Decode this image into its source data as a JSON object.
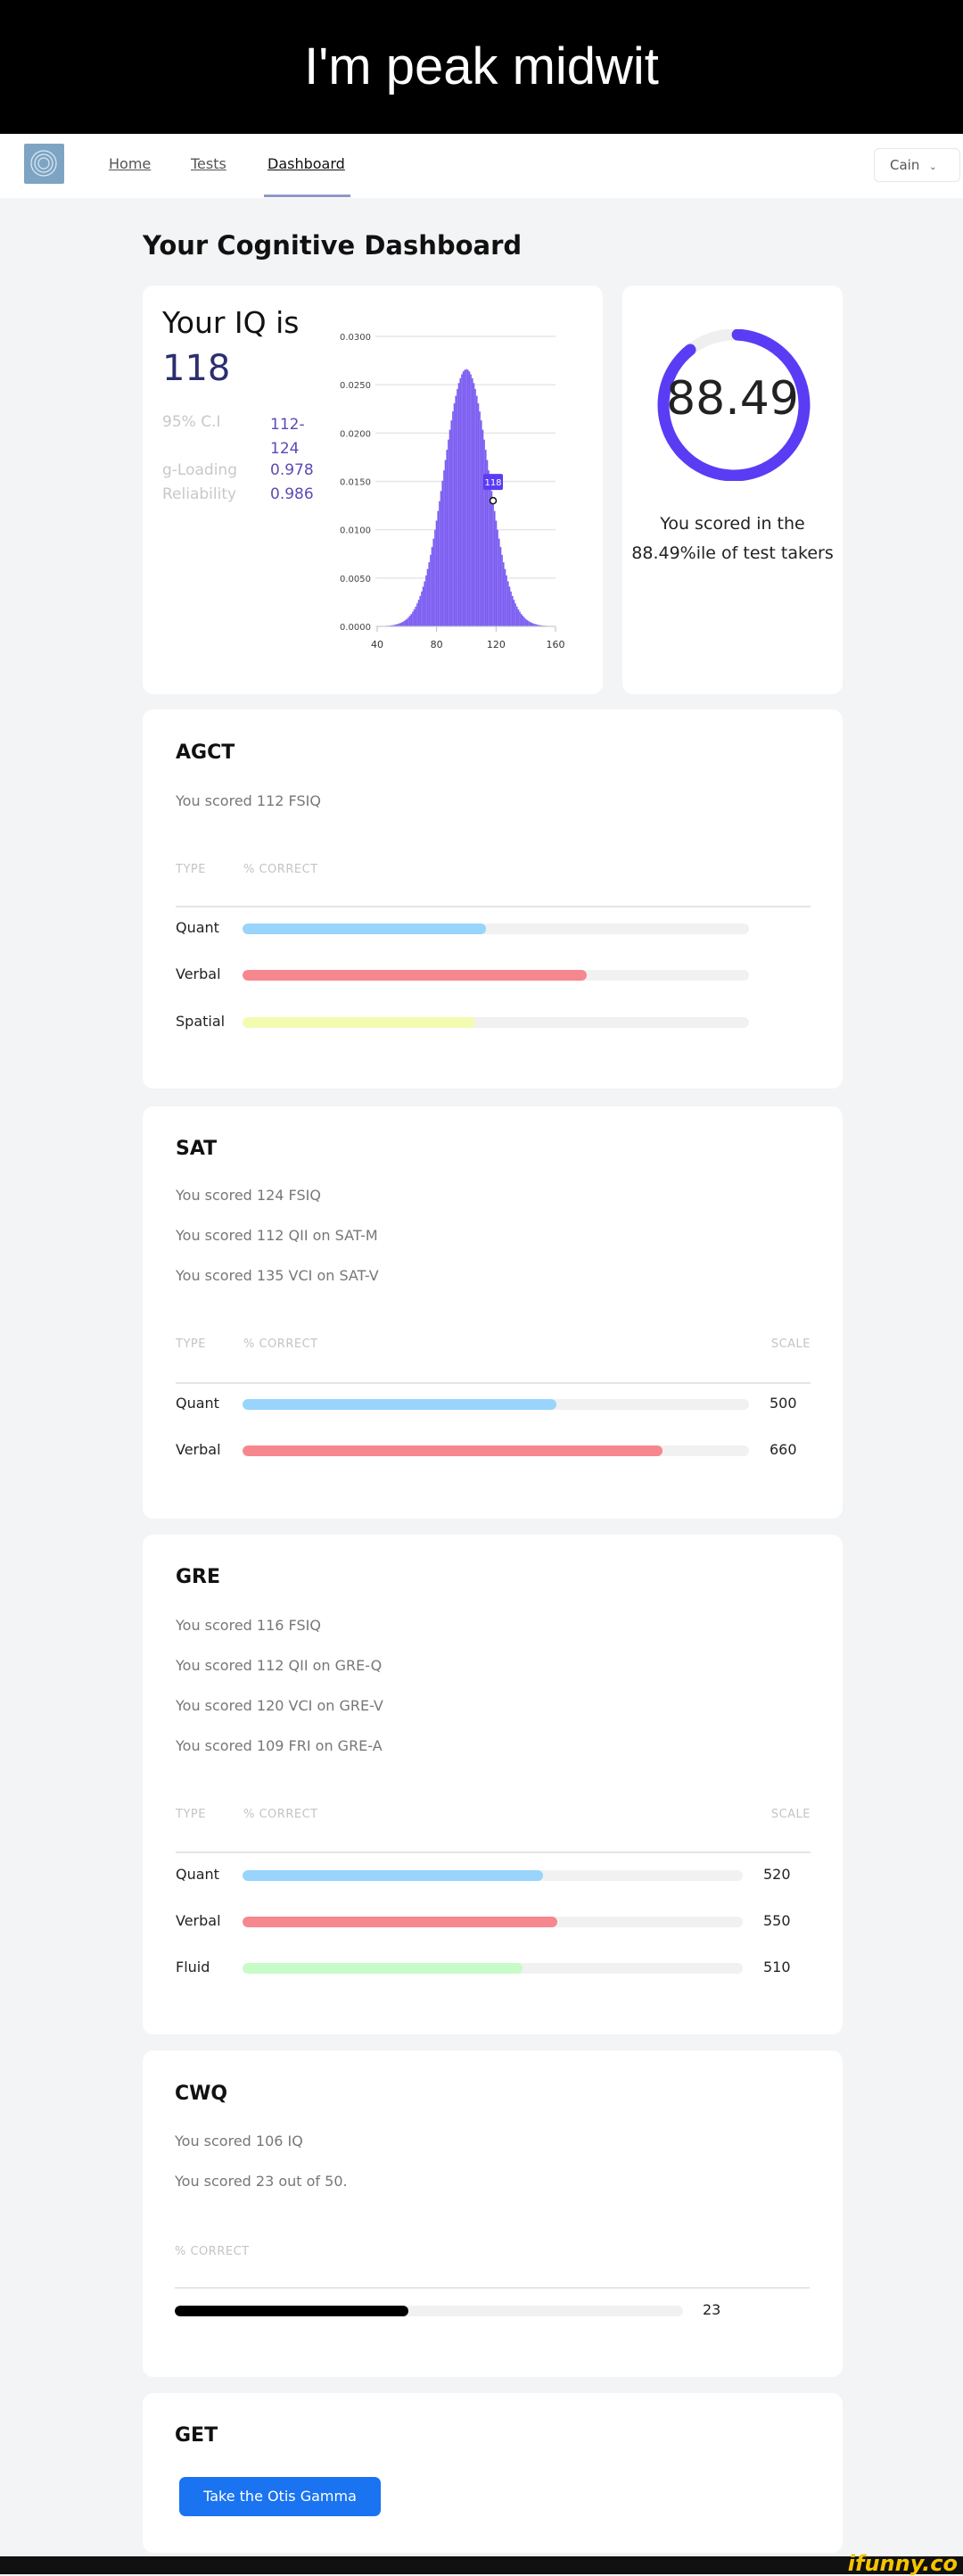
{
  "meme_caption": "I'm peak midwit",
  "nav": {
    "links": [
      "Home",
      "Tests",
      "Dashboard"
    ],
    "active": "Dashboard",
    "user": "Cain"
  },
  "page_title": "Your Cognitive Dashboard",
  "iq": {
    "heading": "Your IQ is",
    "value": "118",
    "stats": [
      {
        "label": "95% C.I",
        "value": "112-\n124"
      },
      {
        "label": "g-Loading",
        "value": "0.978"
      },
      {
        "label": "Reliability",
        "value": "0.986"
      }
    ]
  },
  "chart_data": {
    "type": "bar",
    "distribution": {
      "type": "normal",
      "mean": 100,
      "sd": 15
    },
    "xlim": [
      40,
      160
    ],
    "ylim": [
      0,
      0.03
    ],
    "x_ticks": [
      "40",
      "80",
      "120",
      "160"
    ],
    "y_ticks": [
      "0.0000",
      "0.0050",
      "0.0100",
      "0.0150",
      "0.0200",
      "0.0250",
      "0.0300"
    ],
    "grid": true,
    "marker": {
      "x": 118,
      "y": 0.013,
      "label": "118"
    },
    "color": "#7a5cf0"
  },
  "percentile": {
    "value": 88.49,
    "display": "88.49",
    "line1": "You scored in the",
    "line2": "88.49%ile of test takers",
    "color": "#5b3cf5"
  },
  "colors": {
    "quant": "#98d4fb",
    "verbal": "#f6878f",
    "spatial": "#f3fbb0",
    "fluid": "#c7fbc7",
    "cwq": "#000000",
    "button": "#1a73f0"
  },
  "tests": {
    "agct": {
      "title": "AGCT",
      "lines": [
        "You scored 112 FSIQ"
      ],
      "headers": {
        "type": "TYPE",
        "pct": "% CORRECT"
      },
      "rows": [
        {
          "label": "Quant",
          "pct": 48
        },
        {
          "label": "Verbal",
          "pct": 68
        },
        {
          "label": "Spatial",
          "pct": 46
        }
      ]
    },
    "sat": {
      "title": "SAT",
      "lines": [
        "You scored 124 FSIQ",
        "You scored 112 QII on SAT-M",
        "You scored 135 VCI on SAT-V"
      ],
      "headers": {
        "type": "TYPE",
        "pct": "% CORRECT",
        "scale": "SCALE"
      },
      "rows": [
        {
          "label": "Quant",
          "pct": 62,
          "scale": "500"
        },
        {
          "label": "Verbal",
          "pct": 83,
          "scale": "660"
        }
      ]
    },
    "gre": {
      "title": "GRE",
      "lines": [
        "You scored 116 FSIQ",
        "You scored 112 QII on GRE-Q",
        "You scored 120 VCI on GRE-V",
        "You scored 109 FRI on GRE-A"
      ],
      "headers": {
        "type": "TYPE",
        "pct": "% CORRECT",
        "scale": "SCALE"
      },
      "rows": [
        {
          "label": "Quant",
          "pct": 60,
          "scale": "520"
        },
        {
          "label": "Verbal",
          "pct": 63,
          "scale": "550"
        },
        {
          "label": "Fluid",
          "pct": 56,
          "scale": "510"
        }
      ]
    },
    "cwq": {
      "title": "CWQ",
      "lines": [
        "You scored 106 IQ",
        "You scored 23 out of 50."
      ],
      "headers": {
        "pct": "% CORRECT"
      },
      "pct": 46,
      "value": "23"
    }
  },
  "get": {
    "title": "GET",
    "button": "Take the Otis Gamma"
  },
  "watermark": "ifunny.co"
}
